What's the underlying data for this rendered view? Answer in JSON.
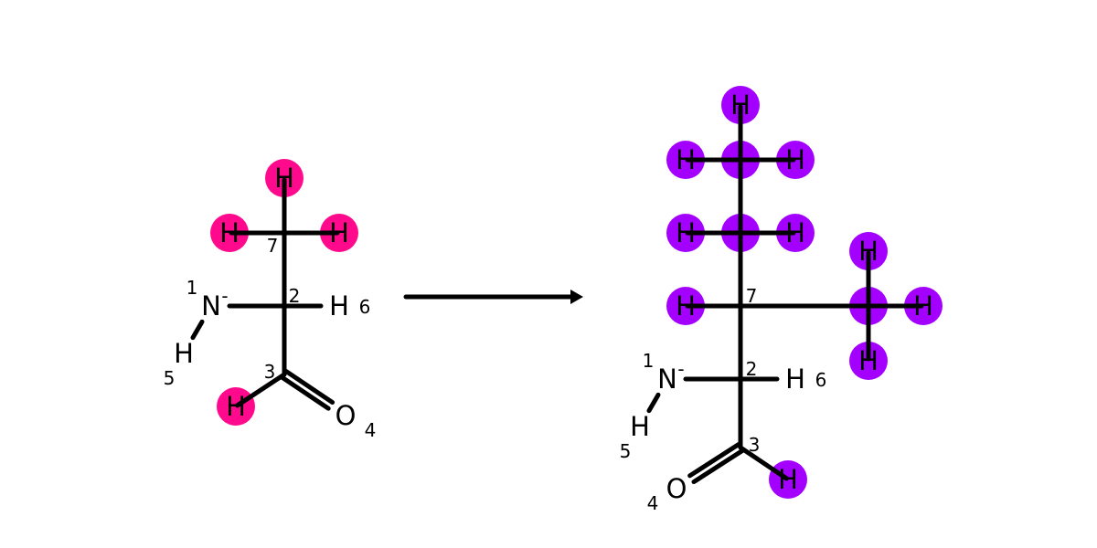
{
  "colors": {
    "bond": "#000000",
    "left_highlight": "#ff0a8c",
    "right_highlight": "#a300ff"
  },
  "arrow": {
    "direction": "right"
  },
  "left_molecule": {
    "atoms": [
      {
        "id": "N1",
        "symbol": "N",
        "charge": "-",
        "index": "1"
      },
      {
        "id": "C2",
        "symbol": "",
        "index": "2"
      },
      {
        "id": "C3",
        "symbol": "",
        "index": "3"
      },
      {
        "id": "O4",
        "symbol": "O",
        "index": "4"
      },
      {
        "id": "H5",
        "symbol": "H",
        "index": "5"
      },
      {
        "id": "H6",
        "symbol": "H",
        "index": "6"
      },
      {
        "id": "C7",
        "symbol": "",
        "index": "7"
      },
      {
        "id": "Htop",
        "symbol": "H",
        "highlight": true
      },
      {
        "id": "Hleft",
        "symbol": "H",
        "highlight": true
      },
      {
        "id": "Hright",
        "symbol": "H",
        "highlight": true
      },
      {
        "id": "Hald",
        "symbol": "H",
        "highlight": true
      }
    ]
  },
  "right_molecule": {
    "atoms": [
      {
        "id": "N1",
        "symbol": "N",
        "charge": "-",
        "index": "1"
      },
      {
        "id": "C2",
        "symbol": "",
        "index": "2"
      },
      {
        "id": "C3",
        "symbol": "",
        "index": "3"
      },
      {
        "id": "O4",
        "symbol": "O",
        "index": "4"
      },
      {
        "id": "H5",
        "symbol": "H",
        "index": "5"
      },
      {
        "id": "H6",
        "symbol": "H",
        "index": "6"
      },
      {
        "id": "C7",
        "symbol": "",
        "index": "7"
      },
      {
        "id": "Cm",
        "symbol": "",
        "highlight": true
      },
      {
        "id": "Ct",
        "symbol": "",
        "highlight": true
      },
      {
        "id": "Cr",
        "symbol": "",
        "highlight": true
      },
      {
        "id": "Htop",
        "symbol": "H",
        "highlight": true
      },
      {
        "id": "Hct_l",
        "symbol": "H",
        "highlight": true
      },
      {
        "id": "Hct_r",
        "symbol": "H",
        "highlight": true
      },
      {
        "id": "Hcm_l",
        "symbol": "H",
        "highlight": true
      },
      {
        "id": "Hcm_r",
        "symbol": "H",
        "highlight": true
      },
      {
        "id": "Hc7_l",
        "symbol": "H",
        "highlight": true
      },
      {
        "id": "Hcr_t",
        "symbol": "H",
        "highlight": true
      },
      {
        "id": "Hcr_r",
        "symbol": "H",
        "highlight": true
      },
      {
        "id": "Hcr_b",
        "symbol": "H",
        "highlight": true
      },
      {
        "id": "Hald",
        "symbol": "H",
        "highlight": true
      }
    ]
  }
}
